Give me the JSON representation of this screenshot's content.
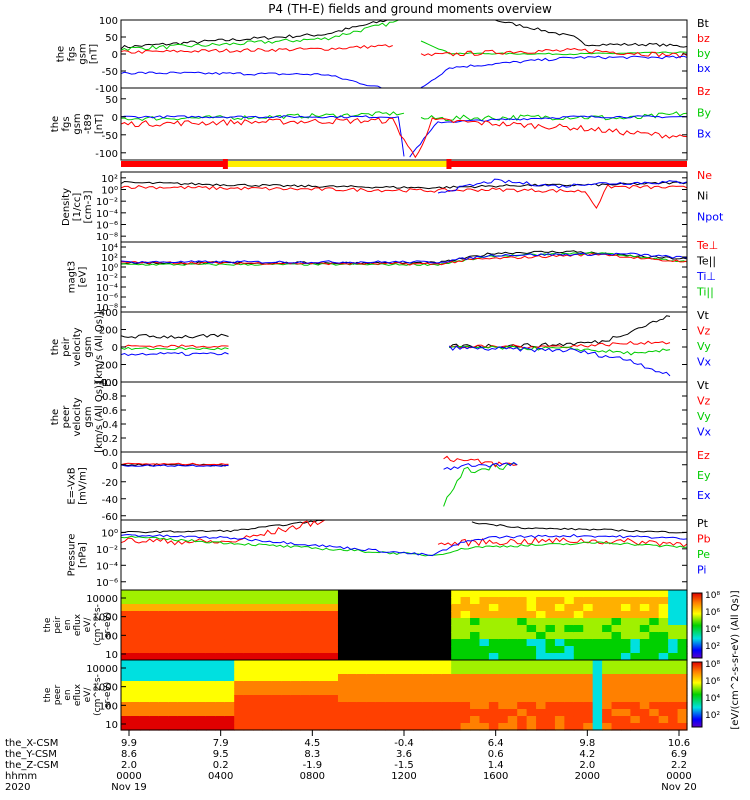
{
  "title": "P4 (TH-E) fields and ground moments overview",
  "colors": {
    "black": "#000000",
    "red": "#ff0000",
    "green": "#00cc00",
    "blue": "#0000ff",
    "yellow": "#ffee00"
  },
  "chart_data": [
    {
      "type": "line",
      "panel": "fgs_gsm",
      "ylabel": [
        "the",
        "fgs",
        "gsm",
        "[nT]"
      ],
      "yticks": [
        100,
        50,
        0,
        -50,
        -100
      ],
      "ylim": [
        -100,
        100
      ],
      "legend": [
        {
          "name": "Bt",
          "color": "black"
        },
        {
          "name": "bz",
          "color": "red"
        },
        {
          "name": "by",
          "color": "green"
        },
        {
          "name": "bx",
          "color": "blue"
        }
      ]
    },
    {
      "type": "line",
      "panel": "fgs_gsm_t89",
      "ylabel": [
        "the",
        "fgs",
        "gsm",
        "-t89",
        "[nT]"
      ],
      "yticks": [
        50,
        0,
        -50,
        -100
      ],
      "ylim": [
        -120,
        80
      ],
      "legend": [
        {
          "name": "Bz",
          "color": "red"
        },
        {
          "name": "By",
          "color": "green"
        },
        {
          "name": "Bx",
          "color": "blue"
        }
      ]
    },
    {
      "type": "line",
      "panel": "density",
      "ylabel": [
        "Density",
        "[1/cc]",
        "[cm-3]"
      ],
      "yticks": [
        "10²",
        "10⁰",
        "10⁻²",
        "10⁻⁴",
        "10⁻⁶",
        "10⁻⁸"
      ],
      "ylim": [
        -9,
        3
      ],
      "log": true,
      "legend": [
        {
          "name": "Ne",
          "color": "red"
        },
        {
          "name": "Ni",
          "color": "black"
        },
        {
          "name": "Npot",
          "color": "blue"
        }
      ]
    },
    {
      "type": "line",
      "panel": "temperature",
      "ylabel": [
        "magt3",
        "[eV]"
      ],
      "yticks": [
        "10⁴",
        "10²",
        "10⁰",
        "10⁻²",
        "10⁻⁴",
        "10⁻⁶",
        "10⁻⁸"
      ],
      "ylim": [
        -9,
        5
      ],
      "log": true,
      "legend": [
        {
          "name": "Te⊥",
          "color": "red"
        },
        {
          "name": "Te||",
          "color": "black"
        },
        {
          "name": "Ti⊥",
          "color": "blue"
        },
        {
          "name": "Ti||",
          "color": "green"
        }
      ]
    },
    {
      "type": "line",
      "panel": "peir_velocity",
      "ylabel": [
        "the",
        "peir",
        "velocity",
        "gsm",
        "[km/s (All Qs)]"
      ],
      "yticks": [
        400,
        200,
        0,
        -200,
        -400
      ],
      "ylim": [
        -400,
        400
      ],
      "legend": [
        {
          "name": "Vt",
          "color": "black"
        },
        {
          "name": "Vz",
          "color": "red"
        },
        {
          "name": "Vy",
          "color": "green"
        },
        {
          "name": "Vx",
          "color": "blue"
        }
      ]
    },
    {
      "type": "line",
      "panel": "peer_velocity",
      "ylabel": [
        "the",
        "peer",
        "velocity",
        "gsm",
        "[km/s (All Qs)]"
      ],
      "yticks": [
        "1.0",
        "0.8",
        "0.6",
        "0.4",
        "0.2",
        "0.0"
      ],
      "ylim": [
        0,
        1
      ],
      "legend": [
        {
          "name": "Vt",
          "color": "black"
        },
        {
          "name": "Vz",
          "color": "red"
        },
        {
          "name": "Vy",
          "color": "green"
        },
        {
          "name": "Vx",
          "color": "blue"
        }
      ]
    },
    {
      "type": "line",
      "panel": "efield",
      "ylabel": [
        "E=-VxB",
        "[mV/m]"
      ],
      "yticks": [
        0,
        -20,
        -40,
        -60
      ],
      "ylim": [
        -65,
        15
      ],
      "legend": [
        {
          "name": "Ez",
          "color": "red"
        },
        {
          "name": "Ey",
          "color": "green"
        },
        {
          "name": "Ex",
          "color": "blue"
        }
      ]
    },
    {
      "type": "line",
      "panel": "pressure",
      "ylabel": [
        "Pressure",
        "[nPa]"
      ],
      "yticks": [
        "10⁰",
        "10⁻²",
        "10⁻⁴",
        "10⁻⁶"
      ],
      "ylim": [
        -7,
        1.5
      ],
      "log": true,
      "legend": [
        {
          "name": "Pt",
          "color": "black"
        },
        {
          "name": "Pb",
          "color": "red"
        },
        {
          "name": "Pe",
          "color": "green"
        },
        {
          "name": "Pi",
          "color": "blue"
        }
      ]
    },
    {
      "type": "heatmap",
      "panel": "peir_eflux",
      "ylabel": [
        "the",
        "peir",
        "en",
        "eflux",
        "eV/",
        "(cm^2-s-",
        "sr-eV)"
      ],
      "yticks": [
        "10000",
        "1000",
        "100",
        "10"
      ],
      "log": true
    },
    {
      "type": "heatmap",
      "panel": "peer_eflux",
      "ylabel": [
        "the",
        "peer",
        "en",
        "eflux",
        "eV/",
        "(cm^2-s-",
        "sr-eV)"
      ],
      "yticks": [
        "10000",
        "1000",
        "100",
        "10"
      ],
      "log": true
    }
  ],
  "colorbar": {
    "label": "[eV/(cm^2-s-sr-eV) (All Qs)]",
    "ticks_top": [
      "10⁸",
      "10⁶",
      "10⁴",
      "10²"
    ],
    "ticks_bottom": [
      "10⁸",
      "10⁶",
      "10⁴",
      "10²"
    ]
  },
  "xaxis": {
    "row_labels": [
      "the_X-CSM",
      "the_Y-CSM",
      "the_Z-CSM",
      "hhmm",
      "2020"
    ],
    "ticks": [
      {
        "x": "9.9",
        "y": "8.6",
        "z": "2.0",
        "t": "0000",
        "d": "Nov 19"
      },
      {
        "x": "7.9",
        "y": "9.5",
        "z": "0.2",
        "t": "0400",
        "d": ""
      },
      {
        "x": "4.5",
        "y": "8.3",
        "z": "-1.9",
        "t": "0800",
        "d": ""
      },
      {
        "x": "-0.4",
        "y": "3.6",
        "z": "-1.5",
        "t": "1200",
        "d": ""
      },
      {
        "x": "6.4",
        "y": "0.6",
        "z": "1.4",
        "t": "1600",
        "d": ""
      },
      {
        "x": "9.8",
        "y": "4.2",
        "z": "2.0",
        "t": "2000",
        "d": ""
      },
      {
        "x": "10.6",
        "y": "6.9",
        "z": "2.2",
        "t": "0000",
        "d": "Nov 20"
      }
    ]
  }
}
